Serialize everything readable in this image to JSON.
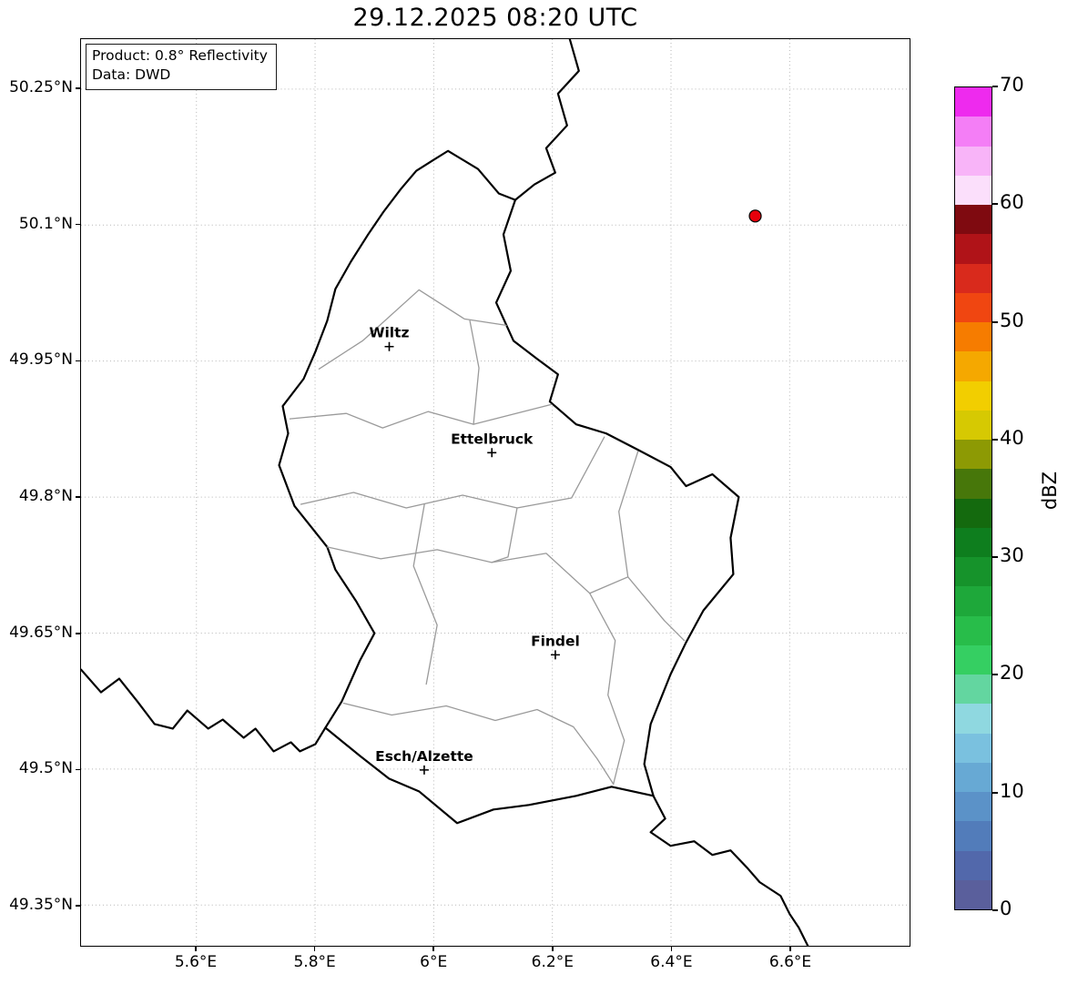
{
  "title": "29.12.2025 08:20 UTC",
  "info_box": {
    "line1": "Product: 0.8° Reflectivity",
    "line2": "Data: DWD"
  },
  "axes": {
    "extent": {
      "lon_min": 5.4055,
      "lon_max": 6.8021,
      "lat_min": 49.3051,
      "lat_max": 50.3051
    },
    "x_ticks": [
      {
        "label": "5.6°E",
        "lon": 5.6
      },
      {
        "label": "5.8°E",
        "lon": 5.8
      },
      {
        "label": "6°E",
        "lon": 6.0
      },
      {
        "label": "6.2°E",
        "lon": 6.2
      },
      {
        "label": "6.4°E",
        "lon": 6.4
      },
      {
        "label": "6.6°E",
        "lon": 6.6
      }
    ],
    "y_ticks": [
      {
        "label": "50.25°N",
        "lat": 50.25
      },
      {
        "label": "50.1°N",
        "lat": 50.1
      },
      {
        "label": "49.95°N",
        "lat": 49.95
      },
      {
        "label": "49.8°N",
        "lat": 49.8
      },
      {
        "label": "49.65°N",
        "lat": 49.65
      },
      {
        "label": "49.5°N",
        "lat": 49.5
      },
      {
        "label": "49.35°N",
        "lat": 49.35
      }
    ]
  },
  "map": {
    "cities": [
      {
        "name": "Wiltz",
        "lon": 5.925,
        "lat": 49.966
      },
      {
        "name": "Ettelbruck",
        "lon": 6.098,
        "lat": 49.849
      },
      {
        "name": "Findel",
        "lon": 6.205,
        "lat": 49.626
      },
      {
        "name": "Esch/Alzette",
        "lon": 5.984,
        "lat": 49.499
      }
    ],
    "radar_marker": {
      "lon": 6.542,
      "lat": 50.11,
      "color": "#e8000b"
    }
  },
  "colorbar": {
    "label": "dBZ",
    "vmin": 0,
    "vmax": 70,
    "step": 2.5,
    "ticks": [
      {
        "value": 0,
        "label": "0"
      },
      {
        "value": 10,
        "label": "10"
      },
      {
        "value": 20,
        "label": "20"
      },
      {
        "value": 30,
        "label": "30"
      },
      {
        "value": 40,
        "label": "40"
      },
      {
        "value": 50,
        "label": "50"
      },
      {
        "value": 60,
        "label": "60"
      },
      {
        "value": 70,
        "label": "70"
      }
    ],
    "colors_bottom_to_top": [
      "#5a5f9c",
      "#5268ab",
      "#527cba",
      "#5b92c8",
      "#67a9d4",
      "#7ac1df",
      "#8fd8e0",
      "#63d6a0",
      "#35cf62",
      "#28bd4a",
      "#1ea83a",
      "#16932b",
      "#0e7e1e",
      "#146a0e",
      "#47770a",
      "#8d9a04",
      "#d6c902",
      "#f2ce00",
      "#f5a800",
      "#f67c00",
      "#f04611",
      "#d92a1c",
      "#b01318",
      "#7f0a10",
      "#fbdffb",
      "#f8b4f8",
      "#f47ef6",
      "#ee2aee"
    ]
  }
}
